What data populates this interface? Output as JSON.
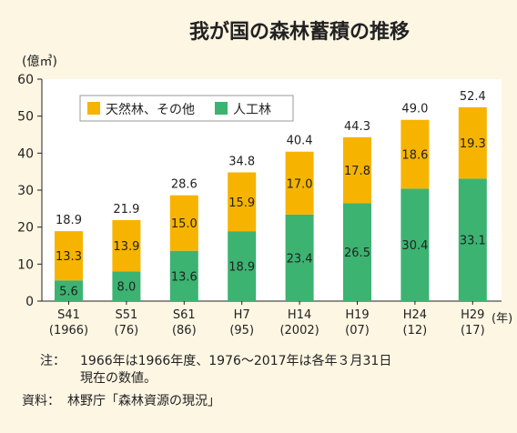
{
  "chart_data": {
    "type": "bar",
    "stacked": true,
    "title": "我が国の森林蓄積の推移",
    "ylabel": "(億㎥)",
    "xunit": "(年)",
    "ylim": [
      0,
      60
    ],
    "yticks": [
      0,
      10,
      20,
      30,
      40,
      50,
      60
    ],
    "categories": [
      {
        "top": "S41",
        "bottom": "(1966)"
      },
      {
        "top": "S51",
        "bottom": "(76)"
      },
      {
        "top": "S61",
        "bottom": "(86)"
      },
      {
        "top": "H7",
        "bottom": "(95)"
      },
      {
        "top": "H14",
        "bottom": "(2002)"
      },
      {
        "top": "H19",
        "bottom": "(07)"
      },
      {
        "top": "H24",
        "bottom": "(12)"
      },
      {
        "top": "H29",
        "bottom": "(17)"
      }
    ],
    "series": [
      {
        "name": "人工林",
        "color": "#3cb371",
        "values": [
          5.6,
          8.0,
          13.6,
          18.9,
          23.4,
          26.5,
          30.4,
          33.1
        ],
        "labels": [
          "5.6",
          "8.0",
          "13.6",
          "18.9",
          "23.4",
          "26.5",
          "30.4",
          "33.1"
        ]
      },
      {
        "name": "天然林、その他",
        "color": "#f6b400",
        "values": [
          13.3,
          13.9,
          15.0,
          15.9,
          17.0,
          17.8,
          18.6,
          19.3
        ],
        "labels": [
          "13.3",
          "13.9",
          "15.0",
          "15.9",
          "17.0",
          "17.8",
          "18.6",
          "19.3"
        ]
      }
    ],
    "totals": [
      18.9,
      21.9,
      28.6,
      34.8,
      40.4,
      44.3,
      49.0,
      52.4
    ],
    "total_labels": [
      "18.9",
      "21.9",
      "28.6",
      "34.8",
      "40.4",
      "44.3",
      "49.0",
      "52.4"
    ],
    "legend_order": [
      "天然林、その他",
      "人工林"
    ],
    "legend_position": "top-left",
    "grid": false
  },
  "notes": {
    "note_head": "注：",
    "note_line1": "1966年は1966年度、1976～2017年は各年３月31日",
    "note_line2": "現在の数値。",
    "source_head": "資料：",
    "source_text": "林野庁「森林資源の現況」"
  },
  "colors": {
    "background": "#fdf6e3",
    "plot_area": "#ffffff"
  }
}
